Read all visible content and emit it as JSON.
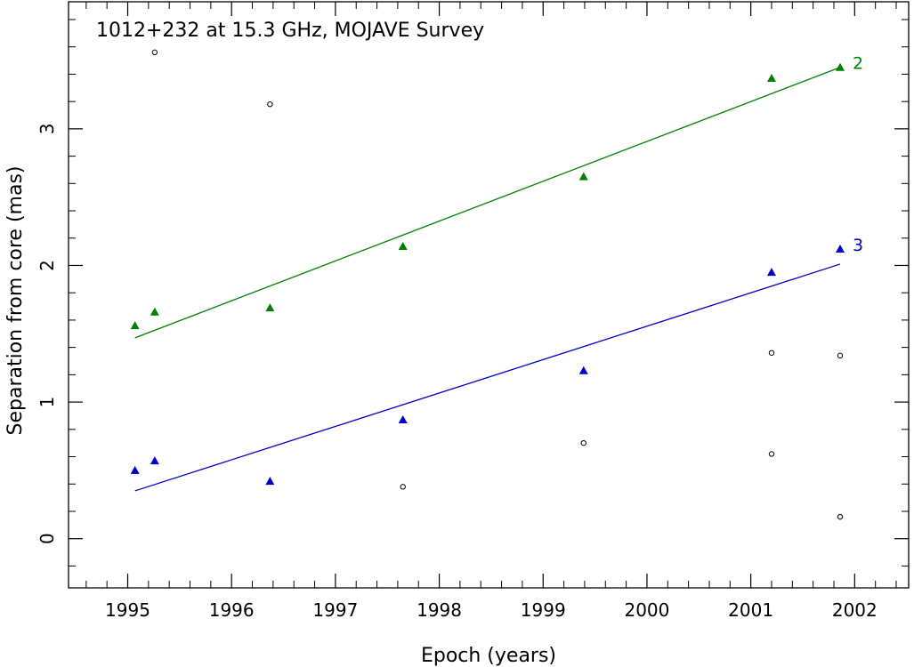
{
  "chart_data": {
    "type": "scatter",
    "title": "1012+232 at 15.3 GHz, MOJAVE Survey",
    "xlabel": "Epoch (years)",
    "ylabel": "Separation from core (mas)",
    "xlim": [
      1994.43,
      2002.52
    ],
    "ylim": [
      -0.36,
      3.93
    ],
    "xticks": [
      1995,
      1996,
      1997,
      1998,
      1999,
      2000,
      2001,
      2002
    ],
    "yticks": [
      0,
      1,
      2,
      3
    ],
    "grid": false,
    "series": [
      {
        "name": "2",
        "color": "#008000",
        "marker": "triangle",
        "x": [
          1995.07,
          1995.26,
          1996.37,
          1997.65,
          1999.39,
          2001.2,
          2001.86
        ],
        "y": [
          1.56,
          1.66,
          1.69,
          2.14,
          2.65,
          3.37,
          3.45
        ],
        "fit": {
          "x": [
            1995.07,
            2001.86
          ],
          "y": [
            1.47,
            3.45
          ]
        }
      },
      {
        "name": "3",
        "color": "#0000c8",
        "marker": "triangle",
        "x": [
          1995.07,
          1995.26,
          1996.37,
          1997.65,
          1999.39,
          2001.2,
          2001.86
        ],
        "y": [
          0.5,
          0.57,
          0.42,
          0.87,
          1.23,
          1.95,
          2.12
        ],
        "fit": {
          "x": [
            1995.07,
            2001.86
          ],
          "y": [
            0.35,
            2.01
          ]
        }
      },
      {
        "color": "#000000",
        "marker": "circle",
        "x": [
          1995.26,
          1996.37,
          1997.65,
          1999.39,
          2001.2,
          2001.86,
          2001.2,
          2001.86
        ],
        "y": [
          3.56,
          3.18,
          0.38,
          0.7,
          1.36,
          1.34,
          0.62,
          0.16
        ]
      }
    ]
  }
}
